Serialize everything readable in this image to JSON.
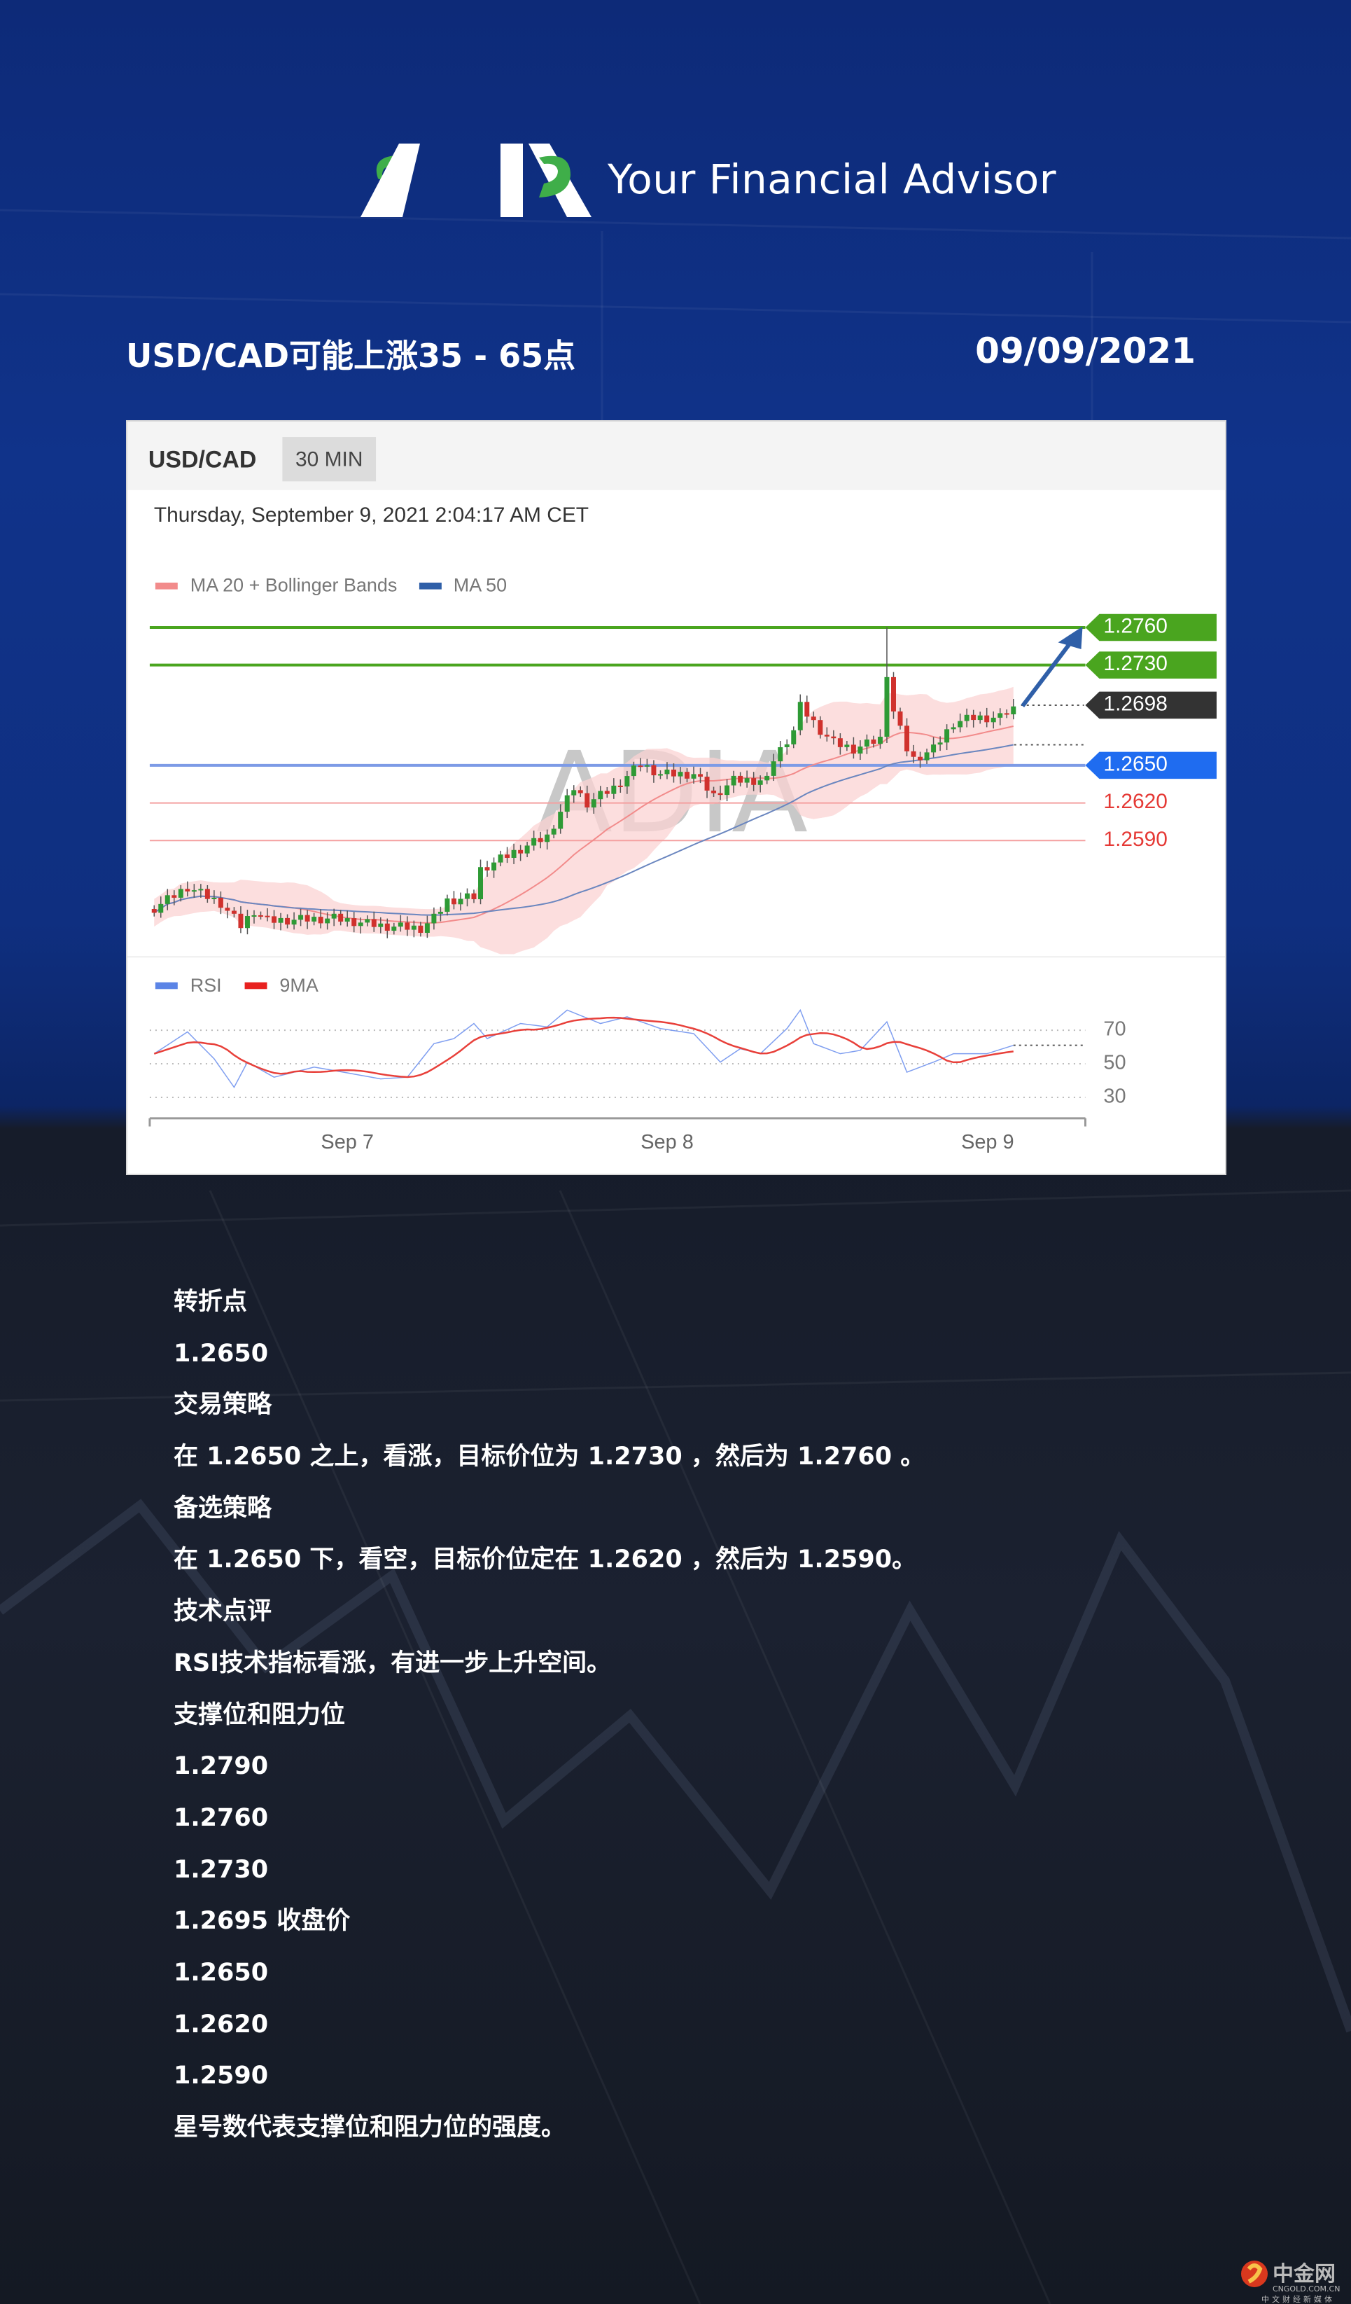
{
  "brand": {
    "logo_text": "ADIA",
    "tagline": "Your Financial Advisor"
  },
  "header": {
    "title": "USD/CAD可能上涨35 - 65点",
    "date": "09/09/2021"
  },
  "chart_panel": {
    "symbol": "USD/CAD",
    "timeframe": "30 MIN",
    "timestamp": "Thursday, September 9, 2021 2:04:17 AM CET",
    "watermark": "ADIA",
    "legend": [
      {
        "label": "MA 20 + Bollinger Bands",
        "color": "#f28b8b"
      },
      {
        "label": "MA 50",
        "color": "#2f5fa8"
      }
    ],
    "rsi_legend": [
      {
        "label": "RSI",
        "color": "#5b84e6"
      },
      {
        "label": "9MA",
        "color": "#e8211f"
      }
    ]
  },
  "chart_data": {
    "type": "candlestick",
    "timeframe_minutes": 30,
    "x_ticks": [
      "Sep 7",
      "Sep 8",
      "Sep 9"
    ],
    "price_close_path": [
      [
        "09-06 09:30",
        1.2536
      ],
      [
        "09-06 12:00",
        1.2553
      ],
      [
        "09-06 14:30",
        1.254
      ],
      [
        "09-06 16:00",
        1.2522
      ],
      [
        "09-06 17:00",
        1.2534
      ],
      [
        "09-06 18:00",
        1.2526
      ],
      [
        "09-06 23:00",
        1.2528
      ],
      [
        "09-07 02:30",
        1.2522
      ],
      [
        "09-07 05:30",
        1.252
      ],
      [
        "09-07 06:30",
        1.2528
      ],
      [
        "09-07 07:30",
        1.2542
      ],
      [
        "09-07 09:30",
        1.2545
      ],
      [
        "09-07 10:00",
        1.2567
      ],
      [
        "09-07 12:00",
        1.2578
      ],
      [
        "09-07 13:30",
        1.2586
      ],
      [
        "09-07 15:00",
        1.2593
      ],
      [
        "09-07 16:00",
        1.2613
      ],
      [
        "09-07 17:00",
        1.2632
      ],
      [
        "09-07 18:00",
        1.262
      ],
      [
        "09-07 20:00",
        1.2632
      ],
      [
        "09-07 22:00",
        1.2651
      ],
      [
        "09-07 23:30",
        1.2643
      ],
      [
        "09-08 02:00",
        1.2643
      ],
      [
        "09-08 03:30",
        1.2626
      ],
      [
        "09-08 05:00",
        1.2638
      ],
      [
        "09-08 07:30",
        1.2638
      ],
      [
        "09-08 08:00",
        1.2655
      ],
      [
        "09-08 09:30",
        1.2678
      ],
      [
        "09-08 10:00",
        1.2697
      ],
      [
        "09-08 11:30",
        1.2678
      ],
      [
        "09-08 12:30",
        1.2668
      ],
      [
        "09-08 14:00",
        1.2663
      ],
      [
        "09-08 16:00",
        1.2671
      ],
      [
        "09-08 16:30",
        1.2724
      ],
      [
        "09-08 17:00",
        1.2693
      ],
      [
        "09-08 18:00",
        1.2663
      ],
      [
        "09-08 18:30",
        1.2655
      ],
      [
        "09-08 20:00",
        1.2663
      ],
      [
        "09-08 21:30",
        1.2684
      ],
      [
        "09-08 23:00",
        1.2688
      ],
      [
        "09-09 01:00",
        1.2688
      ],
      [
        "09-09 02:00",
        1.2697
      ]
    ],
    "spike_high": {
      "time": "09-08 16:30",
      "price": 1.276
    },
    "last_price": 1.2698,
    "levels": [
      {
        "price": "1.2760",
        "value": 1.276,
        "role": "resistance",
        "color": "#4aa51f"
      },
      {
        "price": "1.2730",
        "value": 1.273,
        "role": "resistance",
        "color": "#4aa51f"
      },
      {
        "price": "1.2698",
        "value": 1.2698,
        "role": "current",
        "color": "#333333"
      },
      {
        "price": "1.2650",
        "value": 1.265,
        "role": "pivot",
        "color": "#1f6cf0"
      },
      {
        "price": "1.2620",
        "value": 1.262,
        "role": "support",
        "color": "#e53935"
      },
      {
        "price": "1.2590",
        "value": 1.259,
        "role": "support",
        "color": "#e53935"
      }
    ],
    "rsi": {
      "ticks": [
        "70",
        "50",
        "30"
      ],
      "path": [
        [
          "09-06 09:30",
          56
        ],
        [
          "09-06 12:00",
          69
        ],
        [
          "09-06 14:00",
          53
        ],
        [
          "09-06 15:30",
          36
        ],
        [
          "09-06 16:30",
          51
        ],
        [
          "09-06 18:30",
          42
        ],
        [
          "09-06 21:30",
          48
        ],
        [
          "09-06 23:00",
          46
        ],
        [
          "09-07 02:30",
          41
        ],
        [
          "09-07 04:30",
          42
        ],
        [
          "09-07 06:30",
          62
        ],
        [
          "09-07 08:00",
          65
        ],
        [
          "09-07 09:30",
          74
        ],
        [
          "09-07 10:30",
          65
        ],
        [
          "09-07 13:00",
          74
        ],
        [
          "09-07 15:00",
          72
        ],
        [
          "09-07 16:30",
          82
        ],
        [
          "09-07 19:00",
          74
        ],
        [
          "09-07 21:00",
          78
        ],
        [
          "09-07 23:30",
          71
        ],
        [
          "09-08 02:00",
          68
        ],
        [
          "09-08 04:00",
          51
        ],
        [
          "09-08 05:30",
          59
        ],
        [
          "09-08 07:00",
          56
        ],
        [
          "09-08 09:00",
          71
        ],
        [
          "09-08 10:00",
          82
        ],
        [
          "09-08 11:00",
          62
        ],
        [
          "09-08 13:00",
          56
        ],
        [
          "09-08 14:30",
          58
        ],
        [
          "09-08 16:30",
          75
        ],
        [
          "09-08 18:00",
          45
        ],
        [
          "09-08 20:00",
          51
        ],
        [
          "09-08 21:30",
          56
        ],
        [
          "09-09 00:00",
          56
        ],
        [
          "09-09 02:00",
          61
        ]
      ]
    },
    "forecast": "up arrow toward 1.2760"
  },
  "analysis": {
    "items": [
      "转折点",
      "1.2650",
      "交易策略",
      "在 1.2650 之上，看涨，目标价位为 1.2730 ，然后为 1.2760 。",
      "备选策略",
      "在 1.2650 下，看空，目标价位定在 1.2620 ，然后为 1.2590。",
      "技术点评",
      "RSI技术指标看涨，有进一步上升空间。",
      "支撑位和阻力位",
      "1.2790",
      "1.2760",
      "1.2730",
      "1.2695 收盘价",
      "1.2650",
      "1.2620",
      "1.2590",
      "星号数代表支撑位和阻力位的强度。"
    ]
  },
  "source_watermark": {
    "name": "中金网",
    "domain": "CNGOLD.COM.CN",
    "slogan": "中文财经新媒体"
  }
}
